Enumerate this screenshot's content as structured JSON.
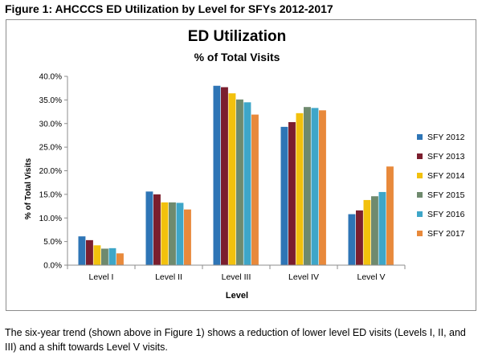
{
  "figure": {
    "caption": "Figure 1: AHCCCS ED Utilization by Level for SFYs 2012-2017"
  },
  "body": {
    "paragraph": "The six-year trend (shown above in Figure 1) shows a reduction of lower level ED visits (Levels I, II, and III) and a shift towards Level V visits."
  },
  "chart_data": {
    "type": "bar",
    "title": "ED Utilization",
    "subtitle": "% of Total Visits",
    "xlabel": "Level",
    "ylabel": "% of Total Visits",
    "categories": [
      "Level I",
      "Level II",
      "Level III",
      "Level IV",
      "Level V"
    ],
    "ylim": [
      0,
      40
    ],
    "yticks": [
      0,
      5,
      10,
      15,
      20,
      25,
      30,
      35,
      40
    ],
    "ytick_labels": [
      "0.0%",
      "5.0%",
      "10.0%",
      "15.0%",
      "20.0%",
      "25.0%",
      "30.0%",
      "35.0%",
      "40.0%"
    ],
    "grid": false,
    "legend_position": "right",
    "series": [
      {
        "name": "SFY 2012",
        "color": "#2e75b6",
        "values": [
          6.1,
          15.6,
          38.0,
          29.3,
          10.8
        ]
      },
      {
        "name": "SFY 2013",
        "color": "#7b1e2e",
        "values": [
          5.3,
          15.0,
          37.7,
          30.3,
          11.6
        ]
      },
      {
        "name": "SFY 2014",
        "color": "#f2c10d",
        "values": [
          4.2,
          13.3,
          36.4,
          32.2,
          13.8
        ]
      },
      {
        "name": "SFY 2015",
        "color": "#6f8a6e",
        "values": [
          3.5,
          13.3,
          35.1,
          33.5,
          14.6
        ]
      },
      {
        "name": "SFY 2016",
        "color": "#3ea6c8",
        "values": [
          3.6,
          13.2,
          34.5,
          33.3,
          15.5
        ]
      },
      {
        "name": "SFY 2017",
        "color": "#e8893b",
        "values": [
          2.5,
          11.8,
          31.9,
          32.8,
          20.9
        ]
      }
    ]
  }
}
